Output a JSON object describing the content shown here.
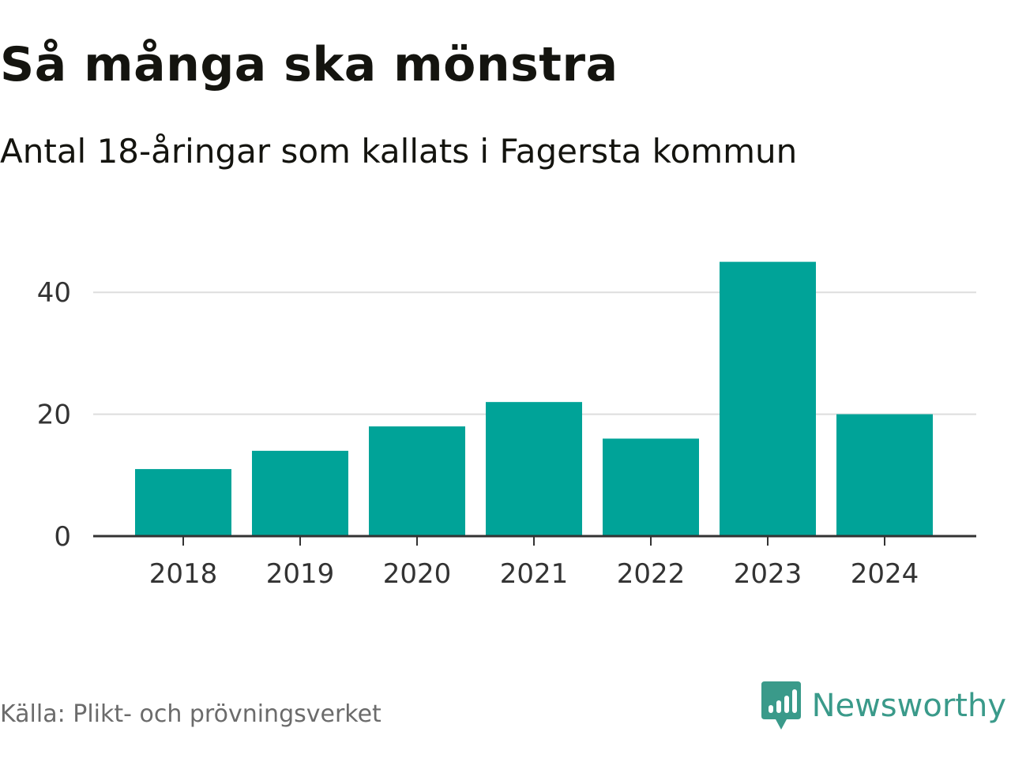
{
  "header": {
    "title": "Så många ska mönstra",
    "subtitle": "Antal 18-åringar som kallats i Fagersta kommun"
  },
  "chart_data": {
    "type": "bar",
    "categories": [
      "2018",
      "2019",
      "2020",
      "2021",
      "2022",
      "2023",
      "2024"
    ],
    "values": [
      11,
      14,
      18,
      22,
      16,
      45,
      20
    ],
    "ylim": [
      0,
      45
    ],
    "yticks": [
      0,
      20,
      40
    ],
    "grid": true,
    "bar_color": "#00a398",
    "grid_color": "#dddddd",
    "axis_color": "#333333"
  },
  "footer": {
    "source": "Källa: Plikt- och prövningsverket",
    "brand_name": "Newsworthy",
    "brand_icon": "newsworthy-logo-icon",
    "brand_color": "#3a9a8a"
  }
}
